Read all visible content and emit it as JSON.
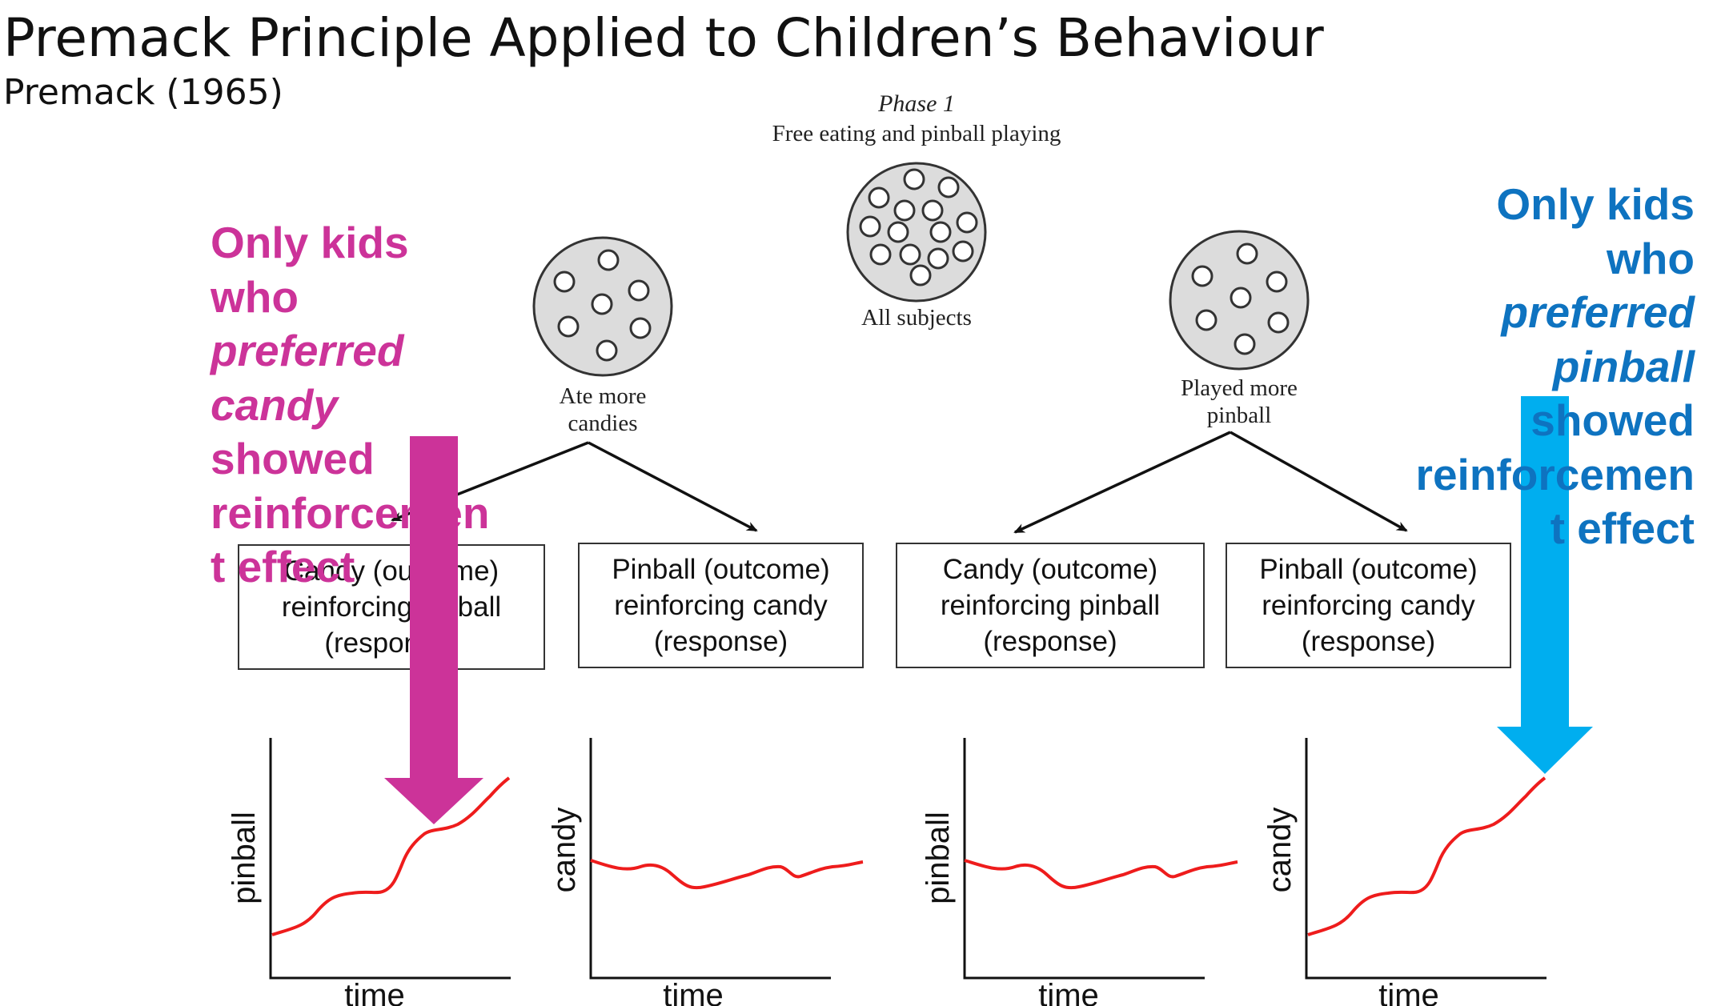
{
  "slide": {
    "title": "Premack Principle Applied to Children’s Behaviour",
    "subtitle": "Premack (1965)"
  },
  "figure": {
    "phase_title": "Phase 1",
    "phase_caption": "Free eating and pinball playing",
    "all_subjects_label": "All subjects",
    "left_group_label": [
      "Ate more",
      "candies"
    ],
    "right_group_label": [
      "Played more",
      "pinball"
    ]
  },
  "boxes": [
    [
      "Candy (outcome)",
      "reinforcing pinball",
      "(response)"
    ],
    [
      "Pinball (outcome)",
      "reinforcing candy",
      "(response)"
    ],
    [
      "Candy (outcome)",
      "reinforcing pinball",
      "(response)"
    ],
    [
      "Pinball (outcome)",
      "reinforcing candy",
      "(response)"
    ]
  ],
  "notes": {
    "left": {
      "lines": [
        "Only kids",
        "who",
        "preferred",
        "candy",
        "showed",
        "reinforcemen",
        "t effect"
      ],
      "color": "#cc3399"
    },
    "right": {
      "lines": [
        "Only kids",
        "who",
        "preferred",
        "pinball",
        "showed",
        "reinforcemen",
        "t effect"
      ],
      "color": "#0e73c0"
    }
  },
  "arrow_colors": {
    "magenta": "#cc3399",
    "blue": "#00aeef"
  },
  "chart_data": [
    {
      "type": "line",
      "ylabel": "pinball",
      "xlabel": "time",
      "trend": "increasing",
      "series_color": "#ee1c1c"
    },
    {
      "type": "line",
      "ylabel": "candy",
      "xlabel": "time",
      "trend": "flat",
      "series_color": "#ee1c1c"
    },
    {
      "type": "line",
      "ylabel": "pinball",
      "xlabel": "time",
      "trend": "flat",
      "series_color": "#ee1c1c"
    },
    {
      "type": "line",
      "ylabel": "candy",
      "xlabel": "time",
      "trend": "increasing",
      "series_color": "#ee1c1c"
    }
  ]
}
